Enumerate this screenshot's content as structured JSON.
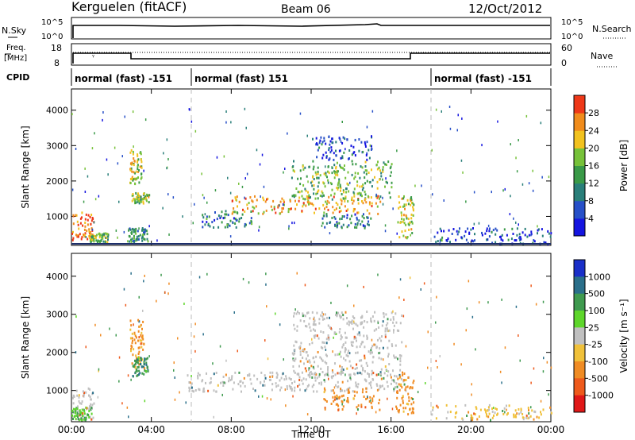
{
  "header": {
    "station": "Kerguelen (fitACF)",
    "beam": "Beam 06",
    "date": "12/Oct/2012"
  },
  "summary": {
    "nsky_label": "N.Sky",
    "nsearch_label": "N.Search",
    "nave_label": "Nave",
    "freq_label": "Freq.",
    "freq_unit": "[MHz]",
    "cpid_label": "CPID",
    "left_ticks": [
      "10^5",
      "10^0"
    ],
    "right_ticks": [
      "10^5",
      "10^0"
    ],
    "freq_ticks": [
      "18",
      "8"
    ],
    "nave_ticks": [
      "60",
      "0"
    ]
  },
  "cpid_segments": [
    {
      "start": 0,
      "end": 6,
      "label": "normal (fast) -151"
    },
    {
      "start": 6,
      "end": 18,
      "label": "normal (fast) 151"
    },
    {
      "start": 18,
      "end": 24,
      "label": "normal (fast) -151"
    }
  ],
  "chart_data": [
    {
      "type": "heatmap",
      "parameter": "Power",
      "ylabel": "Slant Range [km]",
      "xlim": [
        0,
        24
      ],
      "ylim": [
        180,
        4600
      ],
      "y_ticks": [
        1000,
        2000,
        3000,
        4000
      ],
      "colorbar": {
        "label": "Power [dB]",
        "ticks": [
          4,
          8,
          12,
          16,
          20,
          24,
          28
        ],
        "range": [
          0,
          32
        ],
        "colors": [
          "#1515e0",
          "#2750c8",
          "#2a7f7a",
          "#3a9a48",
          "#77c23a",
          "#f2c21f",
          "#f08c1c",
          "#ee3818"
        ]
      },
      "scatter_regions": [
        {
          "time_start": 0.0,
          "time_end": 1.1,
          "range_start": 300,
          "range_end": 1150,
          "level": 28
        },
        {
          "time_start": 0.9,
          "time_end": 1.8,
          "range_start": 300,
          "range_end": 550,
          "level": 16
        },
        {
          "time_start": 2.9,
          "time_end": 3.5,
          "range_start": 1950,
          "range_end": 2900,
          "level": 20
        },
        {
          "time_start": 3.0,
          "time_end": 3.9,
          "range_start": 1400,
          "range_end": 1700,
          "level": 18
        },
        {
          "time_start": 2.8,
          "time_end": 3.8,
          "range_start": 300,
          "range_end": 700,
          "level": 12
        },
        {
          "time_start": 6.5,
          "time_end": 9.0,
          "range_start": 700,
          "range_end": 1200,
          "level": 10
        },
        {
          "time_start": 8.0,
          "time_end": 15.5,
          "range_start": 1100,
          "range_end": 1600,
          "level": 24
        },
        {
          "time_start": 11.0,
          "time_end": 16.0,
          "range_start": 1500,
          "range_end": 2600,
          "level": 16
        },
        {
          "time_start": 12.0,
          "time_end": 15.0,
          "range_start": 2600,
          "range_end": 3300,
          "level": 6
        },
        {
          "time_start": 12.5,
          "time_end": 15.0,
          "range_start": 700,
          "range_end": 1100,
          "level": 10
        },
        {
          "time_start": 16.3,
          "time_end": 17.1,
          "range_start": 400,
          "range_end": 1600,
          "level": 20
        },
        {
          "time_start": 18.0,
          "time_end": 24.0,
          "range_start": 250,
          "range_end": 700,
          "level": 6
        }
      ]
    },
    {
      "type": "heatmap",
      "parameter": "Velocity",
      "ylabel": "Slant Range [km]",
      "xlabel": "Time UT",
      "xlim": [
        0,
        24
      ],
      "ylim": [
        180,
        4600
      ],
      "x_ticks": [
        "00:00",
        "04:00",
        "08:00",
        "12:00",
        "16:00",
        "20:00",
        "00:00"
      ],
      "y_ticks": [
        1000,
        2000,
        3000,
        4000
      ],
      "colorbar": {
        "label": "Velocity [m s⁻¹]",
        "ticks": [
          1000,
          500,
          100,
          25,
          -25,
          -100,
          -500,
          -1000
        ],
        "colors": [
          "#1a2fc8",
          "#2a6f8a",
          "#3f9a4f",
          "#5ed62b",
          "#c0c0c0",
          "#f0c13a",
          "#f08c24",
          "#ee5a1c",
          "#e01818"
        ]
      },
      "scatter_regions": [
        {
          "time_start": 0.0,
          "time_end": 1.1,
          "range_start": 250,
          "range_end": 1100,
          "level": 0
        },
        {
          "time_start": 0.0,
          "time_end": 1.0,
          "range_start": 250,
          "range_end": 600,
          "level": 80
        },
        {
          "time_start": 2.9,
          "time_end": 3.6,
          "range_start": 1700,
          "range_end": 2900,
          "level": -150
        },
        {
          "time_start": 3.0,
          "time_end": 3.8,
          "range_start": 1400,
          "range_end": 1900,
          "level": 400
        },
        {
          "time_start": 5.7,
          "time_end": 17.0,
          "range_start": 1000,
          "range_end": 1500,
          "level": 0
        },
        {
          "time_start": 11.0,
          "time_end": 16.5,
          "range_start": 1400,
          "range_end": 3100,
          "level": 0
        },
        {
          "time_start": 12.5,
          "time_end": 15.5,
          "range_start": 500,
          "range_end": 1100,
          "level": -300
        },
        {
          "time_start": 16.2,
          "time_end": 17.1,
          "range_start": 400,
          "range_end": 1500,
          "level": -200
        },
        {
          "time_start": 18.0,
          "time_end": 24.0,
          "range_start": 250,
          "range_end": 650,
          "level": -60
        }
      ]
    }
  ]
}
